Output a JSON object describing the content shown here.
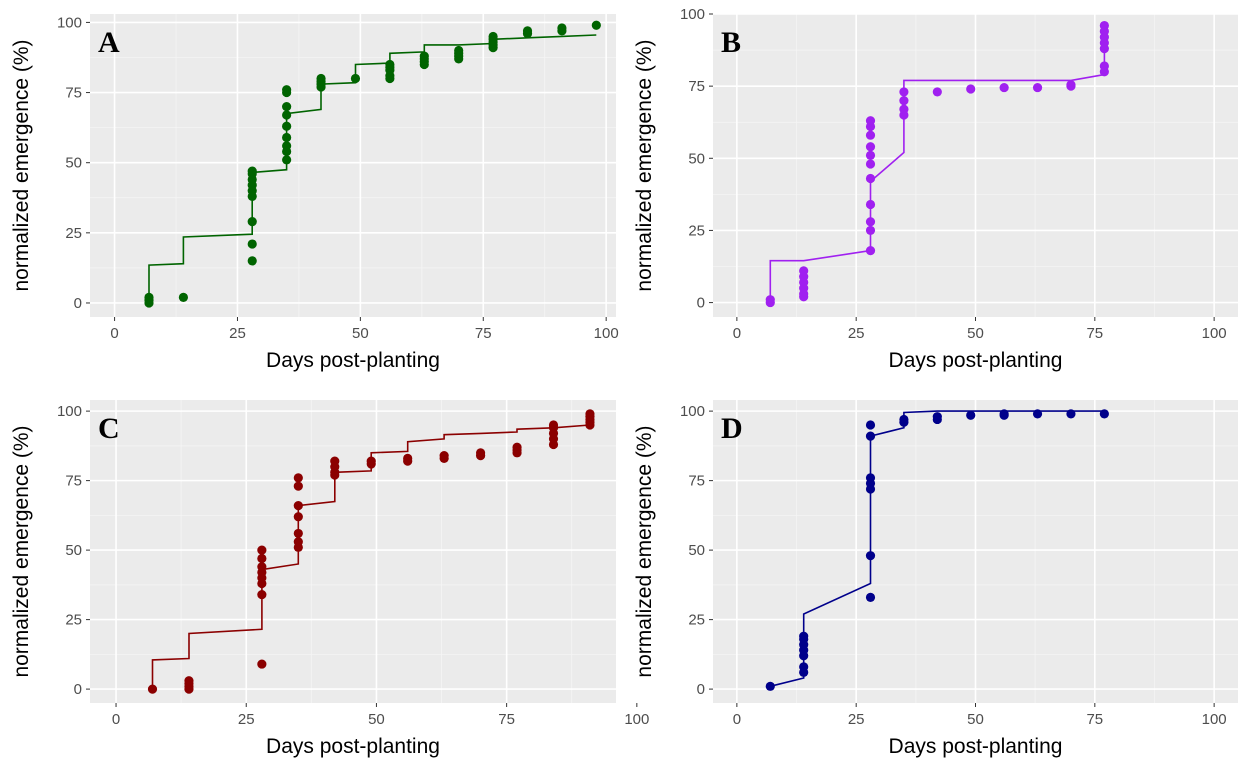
{
  "chart_data": [
    {
      "type": "scatter",
      "panel_label": "A",
      "color": "#006400",
      "xlabel": "Days post-planting",
      "ylabel": "normalized emergence (%)",
      "xlim": [
        -5,
        102
      ],
      "ylim": [
        -5,
        103
      ],
      "x_ticks": [
        0,
        25,
        50,
        75,
        100
      ],
      "y_ticks": [
        0,
        25,
        50,
        75,
        100
      ],
      "x_tick_labels": [
        "0",
        "25",
        "50",
        "75",
        "100"
      ],
      "y_tick_labels": [
        "0",
        "25",
        "50",
        "75",
        "100"
      ],
      "grid": true,
      "points": [
        [
          7,
          0
        ],
        [
          7,
          1
        ],
        [
          7,
          2
        ],
        [
          14,
          2
        ],
        [
          28,
          15
        ],
        [
          28,
          21
        ],
        [
          28,
          29
        ],
        [
          28,
          38
        ],
        [
          28,
          40
        ],
        [
          28,
          42
        ],
        [
          28,
          44
        ],
        [
          28,
          46
        ],
        [
          28,
          47
        ],
        [
          35,
          51
        ],
        [
          35,
          54
        ],
        [
          35,
          56
        ],
        [
          35,
          59
        ],
        [
          35,
          63
        ],
        [
          35,
          67
        ],
        [
          35,
          70
        ],
        [
          35,
          75
        ],
        [
          35,
          76
        ],
        [
          42,
          77
        ],
        [
          42,
          78
        ],
        [
          42,
          79
        ],
        [
          42,
          80
        ],
        [
          49,
          80
        ],
        [
          56,
          80
        ],
        [
          56,
          81
        ],
        [
          56,
          83
        ],
        [
          56,
          84
        ],
        [
          56,
          85
        ],
        [
          63,
          85
        ],
        [
          63,
          86
        ],
        [
          63,
          87
        ],
        [
          63,
          88
        ],
        [
          70,
          87
        ],
        [
          70,
          88
        ],
        [
          70,
          89
        ],
        [
          70,
          90
        ],
        [
          77,
          91
        ],
        [
          77,
          92
        ],
        [
          77,
          93
        ],
        [
          77,
          94
        ],
        [
          77,
          95
        ],
        [
          84,
          96
        ],
        [
          84,
          97
        ],
        [
          91,
          97
        ],
        [
          91,
          98
        ],
        [
          98,
          99
        ]
      ],
      "fit_line": [
        [
          7,
          0
        ],
        [
          7,
          13.5
        ],
        [
          14,
          14
        ],
        [
          14,
          23.5
        ],
        [
          28,
          24.5
        ],
        [
          28,
          46.5
        ],
        [
          35,
          47.5
        ],
        [
          35,
          67.5
        ],
        [
          42,
          69
        ],
        [
          42,
          78
        ],
        [
          49,
          78.5
        ],
        [
          49,
          85
        ],
        [
          56,
          85.5
        ],
        [
          56,
          89
        ],
        [
          63,
          89.5
        ],
        [
          63,
          92
        ],
        [
          70,
          92
        ],
        [
          77,
          92.5
        ],
        [
          77,
          94
        ],
        [
          84,
          94.5
        ],
        [
          91,
          95
        ],
        [
          98,
          95.5
        ]
      ]
    },
    {
      "type": "scatter",
      "panel_label": "B",
      "color": "#a020f0",
      "xlabel": "Days post-planting",
      "ylabel": "normalized emergence (%)",
      "xlim": [
        -5,
        105
      ],
      "ylim": [
        -5,
        100
      ],
      "x_ticks": [
        0,
        25,
        50,
        75,
        100
      ],
      "y_ticks": [
        0,
        25,
        50,
        75,
        100
      ],
      "x_tick_labels": [
        "0",
        "25",
        "50",
        "75",
        "100"
      ],
      "y_tick_labels": [
        "0",
        "25",
        "50",
        "75",
        "100"
      ],
      "grid": true,
      "points": [
        [
          7,
          0
        ],
        [
          7,
          1
        ],
        [
          14,
          2
        ],
        [
          14,
          3
        ],
        [
          14,
          5
        ],
        [
          14,
          7
        ],
        [
          14,
          9
        ],
        [
          14,
          11
        ],
        [
          28,
          18
        ],
        [
          28,
          25
        ],
        [
          28,
          28
        ],
        [
          28,
          34
        ],
        [
          28,
          43
        ],
        [
          28,
          48
        ],
        [
          28,
          51
        ],
        [
          28,
          54
        ],
        [
          28,
          58
        ],
        [
          28,
          61
        ],
        [
          28,
          63
        ],
        [
          35,
          65
        ],
        [
          35,
          67
        ],
        [
          35,
          70
        ],
        [
          35,
          73
        ],
        [
          42,
          73
        ],
        [
          49,
          74
        ],
        [
          56,
          74.5
        ],
        [
          63,
          74.5
        ],
        [
          70,
          75
        ],
        [
          70,
          75.5
        ],
        [
          77,
          80
        ],
        [
          77,
          82
        ],
        [
          77,
          88
        ],
        [
          77,
          90
        ],
        [
          77,
          92
        ],
        [
          77,
          94
        ],
        [
          77,
          96
        ]
      ],
      "fit_line": [
        [
          7,
          0
        ],
        [
          7,
          14.5
        ],
        [
          14,
          14.5
        ],
        [
          28,
          18
        ],
        [
          28,
          42
        ],
        [
          35,
          52
        ],
        [
          35,
          77
        ],
        [
          70,
          77
        ],
        [
          77,
          79
        ],
        [
          77,
          96
        ]
      ]
    },
    {
      "type": "scatter",
      "panel_label": "C",
      "color": "#8b0000",
      "xlabel": "Days post-planting",
      "ylabel": "normalized emergence (%)",
      "xlim": [
        -5,
        96
      ],
      "ylim": [
        -5,
        104
      ],
      "x_ticks": [
        0,
        25,
        50,
        75,
        100
      ],
      "y_ticks": [
        0,
        25,
        50,
        75,
        100
      ],
      "x_tick_labels": [
        "0",
        "25",
        "50",
        "75",
        "100"
      ],
      "y_tick_labels": [
        "0",
        "25",
        "50",
        "75",
        "100"
      ],
      "grid": true,
      "points": [
        [
          7,
          0
        ],
        [
          14,
          0
        ],
        [
          14,
          1
        ],
        [
          14,
          2
        ],
        [
          14,
          3
        ],
        [
          28,
          9
        ],
        [
          28,
          34
        ],
        [
          28,
          38
        ],
        [
          28,
          40
        ],
        [
          28,
          42
        ],
        [
          28,
          44
        ],
        [
          28,
          47
        ],
        [
          28,
          50
        ],
        [
          35,
          51
        ],
        [
          35,
          53
        ],
        [
          35,
          56
        ],
        [
          35,
          62
        ],
        [
          35,
          66
        ],
        [
          35,
          73
        ],
        [
          35,
          76
        ],
        [
          42,
          77
        ],
        [
          42,
          78
        ],
        [
          42,
          80
        ],
        [
          42,
          82
        ],
        [
          49,
          81
        ],
        [
          49,
          82
        ],
        [
          56,
          82
        ],
        [
          56,
          83
        ],
        [
          63,
          83
        ],
        [
          63,
          84
        ],
        [
          70,
          84
        ],
        [
          70,
          85
        ],
        [
          77,
          85
        ],
        [
          77,
          86
        ],
        [
          77,
          87
        ],
        [
          84,
          88
        ],
        [
          84,
          90
        ],
        [
          84,
          92
        ],
        [
          84,
          94
        ],
        [
          84,
          95
        ],
        [
          91,
          95
        ],
        [
          91,
          96
        ],
        [
          91,
          97
        ],
        [
          91,
          98
        ],
        [
          91,
          99
        ]
      ],
      "fit_line": [
        [
          7,
          0
        ],
        [
          7,
          10.5
        ],
        [
          14,
          11
        ],
        [
          14,
          20
        ],
        [
          28,
          21.5
        ],
        [
          28,
          43
        ],
        [
          35,
          45
        ],
        [
          35,
          66
        ],
        [
          42,
          67.5
        ],
        [
          42,
          78
        ],
        [
          49,
          78.5
        ],
        [
          49,
          85
        ],
        [
          56,
          85.5
        ],
        [
          56,
          89
        ],
        [
          63,
          90
        ],
        [
          63,
          91.5
        ],
        [
          70,
          92
        ],
        [
          77,
          92.5
        ],
        [
          77,
          93.5
        ],
        [
          84,
          94
        ],
        [
          91,
          95
        ]
      ]
    },
    {
      "type": "scatter",
      "panel_label": "D",
      "color": "#00008b",
      "xlabel": "Days post-planting",
      "ylabel": "normalized emergence (%)",
      "xlim": [
        -5,
        105
      ],
      "ylim": [
        -5,
        104
      ],
      "x_ticks": [
        0,
        25,
        50,
        75,
        100
      ],
      "y_ticks": [
        0,
        25,
        50,
        75,
        100
      ],
      "x_tick_labels": [
        "0",
        "25",
        "50",
        "75",
        "100"
      ],
      "y_tick_labels": [
        "0",
        "25",
        "50",
        "75",
        "100"
      ],
      "grid": true,
      "points": [
        [
          7,
          1
        ],
        [
          14,
          6
        ],
        [
          14,
          8
        ],
        [
          14,
          12
        ],
        [
          14,
          14
        ],
        [
          14,
          16
        ],
        [
          14,
          18
        ],
        [
          14,
          19
        ],
        [
          28,
          33
        ],
        [
          28,
          48
        ],
        [
          28,
          72
        ],
        [
          28,
          74
        ],
        [
          28,
          76
        ],
        [
          28,
          91
        ],
        [
          28,
          95
        ],
        [
          35,
          96
        ],
        [
          35,
          97
        ],
        [
          42,
          97
        ],
        [
          42,
          98
        ],
        [
          49,
          98.5
        ],
        [
          56,
          98.5
        ],
        [
          56,
          99
        ],
        [
          63,
          99
        ],
        [
          70,
          99
        ],
        [
          77,
          99
        ]
      ],
      "fit_line": [
        [
          7,
          1
        ],
        [
          14,
          4
        ],
        [
          14,
          27
        ],
        [
          28,
          38
        ],
        [
          28,
          91
        ],
        [
          35,
          94
        ],
        [
          35,
          99.5
        ],
        [
          42,
          100
        ],
        [
          77,
          100
        ]
      ]
    }
  ]
}
